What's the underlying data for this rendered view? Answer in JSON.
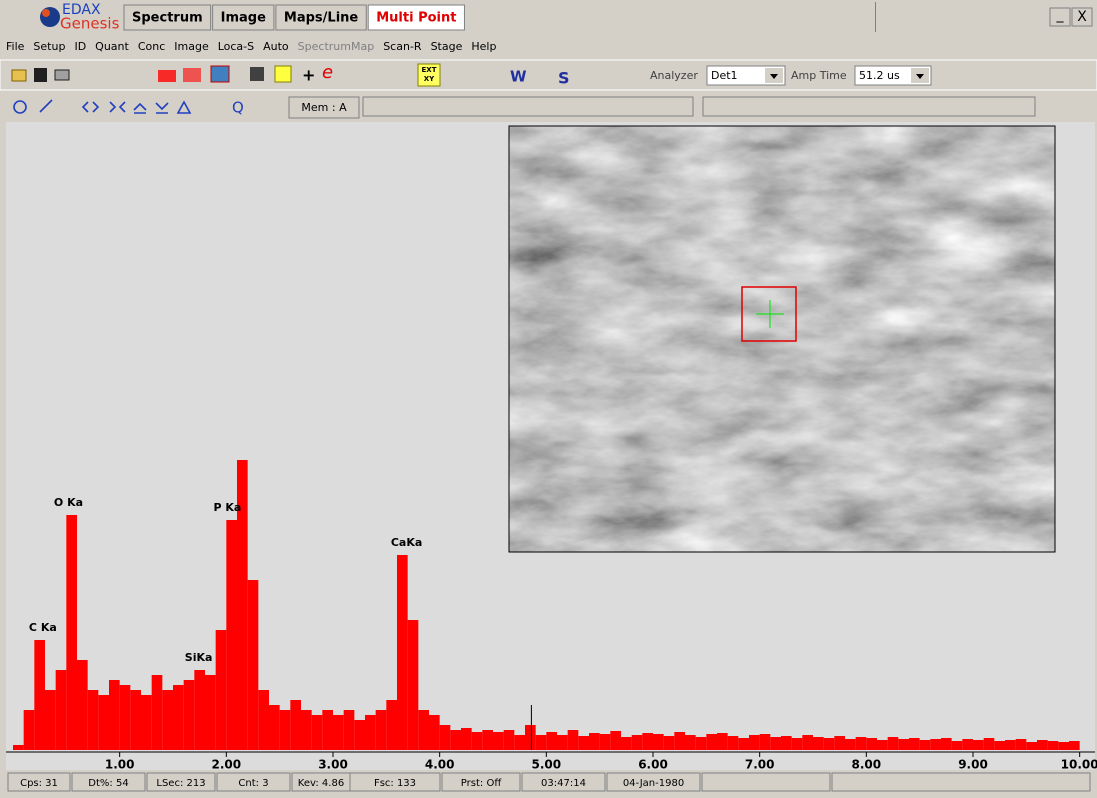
{
  "window": {
    "logo": [
      "EDAX",
      "Genesis"
    ],
    "tabs": [
      "Spectrum",
      "Image",
      "Maps/Line",
      "Multi Point"
    ],
    "controls": [
      "_",
      "X"
    ]
  },
  "menu": [
    {
      "text": "File",
      "enabled": true
    },
    {
      "text": "Setup",
      "enabled": true
    },
    {
      "text": "ID",
      "enabled": true
    },
    {
      "text": "Quant",
      "enabled": true
    },
    {
      "text": "Conc",
      "enabled": true
    },
    {
      "text": "Image",
      "enabled": true
    },
    {
      "text": "Loca-S",
      "enabled": true
    },
    {
      "text": "Auto",
      "enabled": true
    },
    {
      "text": "SpectrumMap",
      "enabled": false
    },
    {
      "text": "Scan-R",
      "enabled": true
    },
    {
      "text": "Stage",
      "enabled": true
    },
    {
      "text": "Help",
      "enabled": true
    }
  ],
  "toolbar": {
    "plus": "+",
    "e": "e",
    "ext": "EXT",
    "xy": "XY",
    "w": "W",
    "s": "S",
    "analyzer_label": "Analyzer",
    "analyzer": "Det1",
    "amp_label": "Amp Time",
    "amp": "51.2 us",
    "q": "Q",
    "mem": "Mem : A"
  },
  "chart_data": {
    "type": "histogram",
    "color": "#ff0000",
    "bins": [
      0,
      0.1,
      0.2,
      0.3,
      0.4,
      0.5,
      0.6,
      0.7,
      0.8,
      0.9,
      1,
      1.1,
      1.2,
      1.3,
      1.4,
      1.5,
      1.6,
      1.7,
      1.8,
      1.9,
      2,
      2.1,
      2.2,
      2.3,
      2.4,
      2.5,
      2.6,
      2.7,
      2.8,
      2.9,
      3,
      3.1,
      3.2,
      3.3,
      3.4,
      3.5,
      3.6,
      3.7,
      3.8,
      3.9,
      4,
      4.1,
      4.2,
      4.3,
      4.4,
      4.5,
      4.6,
      4.7,
      4.8,
      4.9,
      5,
      5.1,
      5.2,
      5.3,
      5.4,
      5.5,
      5.6,
      5.7,
      5.8,
      5.9,
      6,
      6.1,
      6.2,
      6.3,
      6.4,
      6.5,
      6.6,
      6.7,
      6.8,
      6.9,
      7,
      7.1,
      7.2,
      7.3,
      7.4,
      7.5,
      7.6,
      7.7,
      7.8,
      7.9,
      8,
      8.1,
      8.2,
      8.3,
      8.4,
      8.5,
      8.6,
      8.7,
      8.8,
      8.9,
      9,
      9.1,
      9.2,
      9.3,
      9.4,
      9.5,
      9.6,
      9.7,
      9.8,
      9.9,
      10
    ],
    "values": [
      5,
      40,
      110,
      60,
      80,
      235,
      90,
      60,
      55,
      70,
      65,
      60,
      55,
      75,
      60,
      65,
      70,
      80,
      75,
      120,
      230,
      290,
      170,
      60,
      45,
      40,
      50,
      40,
      35,
      40,
      35,
      40,
      30,
      35,
      40,
      50,
      195,
      130,
      40,
      35,
      25,
      20,
      22,
      18,
      20,
      18,
      20,
      15,
      25,
      15,
      18,
      15,
      20,
      14,
      17,
      16,
      19,
      13,
      15,
      17,
      16,
      14,
      18,
      15,
      13,
      16,
      17,
      14,
      12,
      15,
      16,
      13,
      14,
      12,
      15,
      13,
      12,
      14,
      11,
      13,
      12,
      10,
      13,
      11,
      12,
      10,
      11,
      12,
      9,
      11,
      10,
      12,
      9,
      10,
      11,
      8,
      10,
      9,
      8,
      9
    ],
    "xlim": [
      0,
      10.05
    ],
    "ylim": [
      0,
      620
    ],
    "xticks": [
      {
        "value": 1,
        "label": "1.00"
      },
      {
        "value": 2,
        "label": "2.00"
      },
      {
        "value": 3,
        "label": "3.00"
      },
      {
        "value": 4,
        "label": "4.00"
      },
      {
        "value": 5,
        "label": "5.00"
      },
      {
        "value": 6,
        "label": "6.00"
      },
      {
        "value": 7,
        "label": "7.00"
      },
      {
        "value": 8,
        "label": "8.00"
      },
      {
        "value": 9,
        "label": "9.00"
      },
      {
        "value": 10,
        "label": "10.00"
      }
    ],
    "peaks": [
      {
        "label": "C Ka",
        "x": 0.28
      },
      {
        "label": "O Ka",
        "x": 0.52
      },
      {
        "label": "SiKa",
        "x": 1.74
      },
      {
        "label": "P Ka",
        "x": 2.01
      },
      {
        "label": "CaKa",
        "x": 3.69
      }
    ],
    "cursor": 4.86
  },
  "status": [
    "Cps: 31",
    "Dt%: 54",
    "LSec: 213",
    "Cnt: 3",
    "Kev: 4.86",
    "Fsc: 133",
    "Prst: Off",
    "03:47:14",
    "04-Jan-1980"
  ]
}
